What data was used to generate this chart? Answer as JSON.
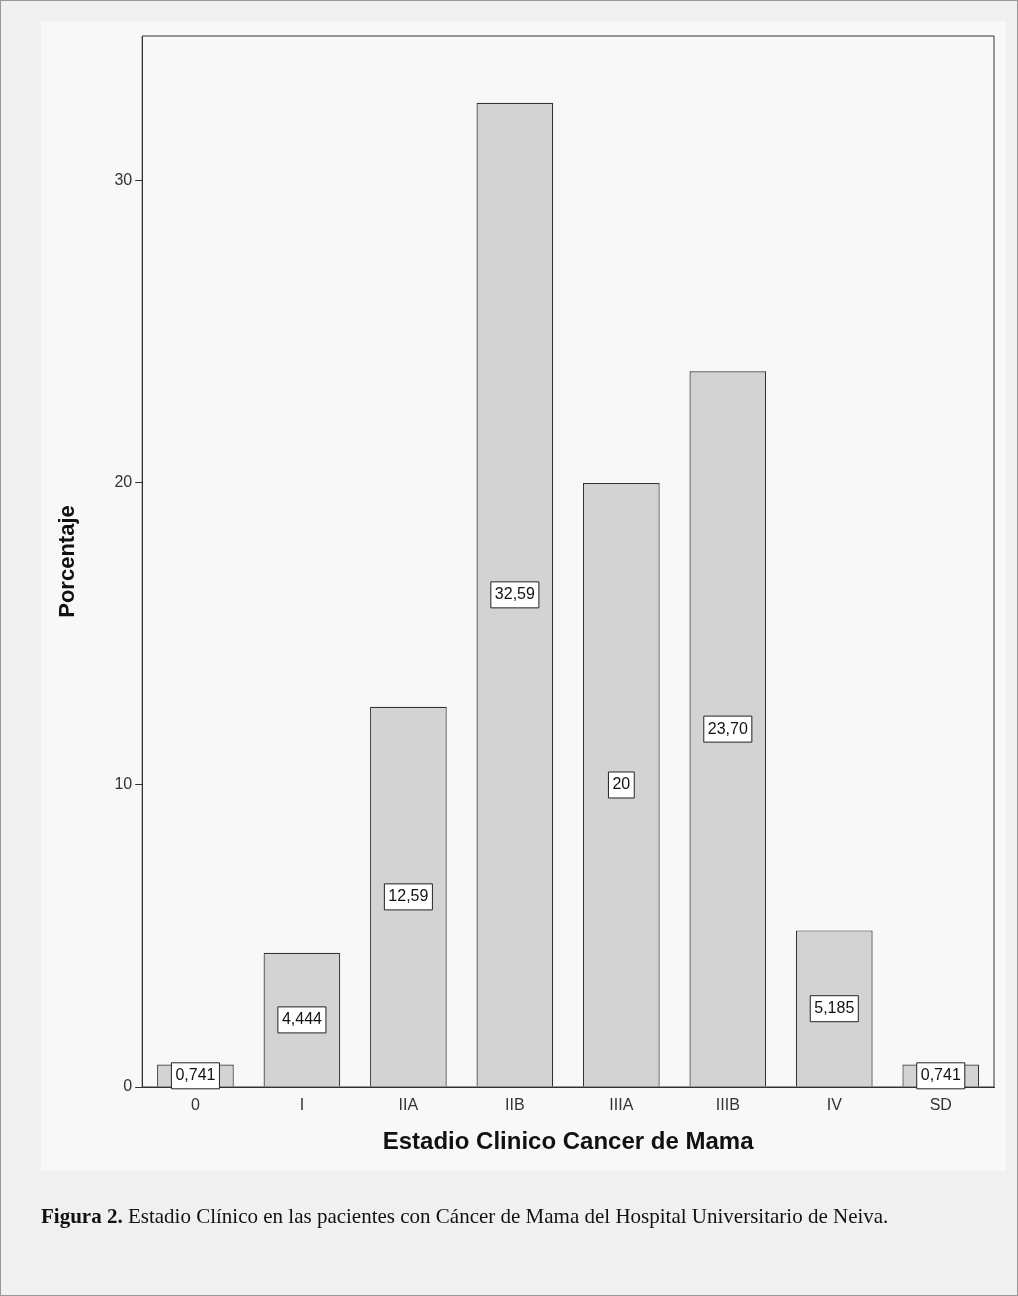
{
  "chart_data": {
    "type": "bar",
    "xlabel": "Estadio Clinico Cancer de Mama",
    "ylabel": "Porcentaje",
    "categories": [
      "0",
      "I",
      "IIA",
      "IIB",
      "IIIA",
      "IIIB",
      "IV",
      "SD"
    ],
    "values": [
      0.741,
      4.444,
      12.59,
      32.59,
      20,
      23.7,
      5.185,
      0.741
    ],
    "value_labels": [
      "0,741",
      "4,444",
      "12,59",
      "32,59",
      "20",
      "23,70",
      "5,185",
      "0,741"
    ],
    "color": "#d3d3d3",
    "ylim": [
      0,
      34.8
    ],
    "yticks": [
      0,
      10,
      20,
      30
    ],
    "annotations": [
      "Figura 2. Estadio Clínico en las pacientes con Cáncer de Mama del Hospital Universitario de Neiva."
    ]
  }
}
